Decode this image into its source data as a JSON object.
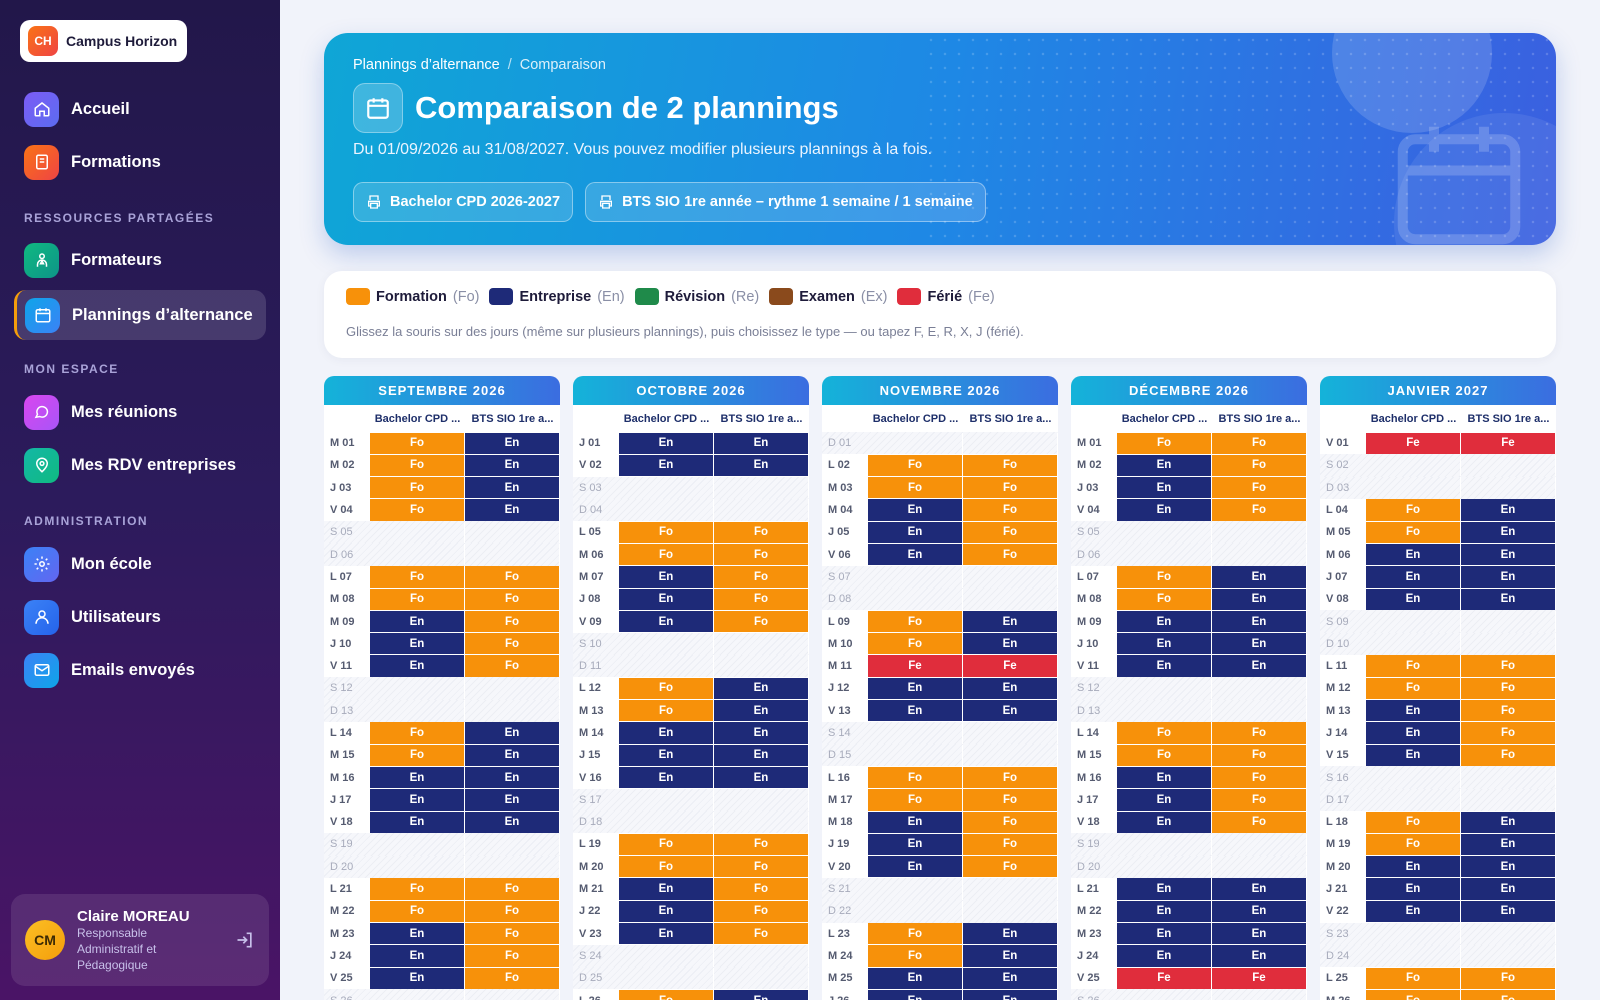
{
  "app": {
    "logo_initials": "CH",
    "logo_name": "Campus Horizon"
  },
  "nav": {
    "accueil": "Accueil",
    "formations": "Formations",
    "section_shared": "RESSOURCES PARTAGÉES",
    "formateurs": "Formateurs",
    "plannings": "Plannings d’alternance",
    "section_me": "MON ESPACE",
    "reunions": "Mes réunions",
    "rdv": "Mes RDV entreprises",
    "section_admin": "ADMINISTRATION",
    "ecole": "Mon école",
    "utilisateurs": "Utilisateurs",
    "emails": "Emails envoyés"
  },
  "user": {
    "initials": "CM",
    "name": "Claire MOREAU",
    "role": "Responsable Administratif et Pédagogique"
  },
  "hero": {
    "breadcrumb_root": "Plannings d’alternance",
    "breadcrumb_sep": "/",
    "breadcrumb_current": "Comparaison",
    "title": "Comparaison de 2 plannings",
    "subtitle": "Du 01/09/2026 au 31/08/2027. Vous pouvez modifier plusieurs plannings à la fois.",
    "chip1": "Bachelor CPD 2026-2027",
    "chip2": "BTS SIO 1re année – rythme 1 semaine / 1 semaine"
  },
  "legend": {
    "items": [
      {
        "name": "Formation",
        "code": "(Fo)",
        "color": "#f7910a"
      },
      {
        "name": "Entreprise",
        "code": "(En)",
        "color": "#1e2a78"
      },
      {
        "name": "Révision",
        "code": "(Re)",
        "color": "#1f8a4a"
      },
      {
        "name": "Examen",
        "code": "(Ex)",
        "color": "#8a4a1c"
      },
      {
        "name": "Férié",
        "code": "(Fe)",
        "color": "#e02d3c"
      }
    ],
    "hint": "Glissez la souris sur des jours (même sur plusieurs plannings), puis choisissez le type — ou tapez F, E, R, X, J (férié)."
  },
  "column_headers": [
    "Bachelor CPD ...",
    "BTS SIO 1re a..."
  ],
  "months": [
    {
      "title": "SEPTEMBRE 2026",
      "rows": [
        [
          "M 01",
          "Fo",
          "En"
        ],
        [
          "M 02",
          "Fo",
          "En"
        ],
        [
          "J 03",
          "Fo",
          "En"
        ],
        [
          "V 04",
          "Fo",
          "En"
        ],
        [
          "S 05",
          "",
          ""
        ],
        [
          "D 06",
          "",
          ""
        ],
        [
          "L 07",
          "Fo",
          "Fo"
        ],
        [
          "M 08",
          "Fo",
          "Fo"
        ],
        [
          "M 09",
          "En",
          "Fo"
        ],
        [
          "J 10",
          "En",
          "Fo"
        ],
        [
          "V 11",
          "En",
          "Fo"
        ],
        [
          "S 12",
          "",
          ""
        ],
        [
          "D 13",
          "",
          ""
        ],
        [
          "L 14",
          "Fo",
          "En"
        ],
        [
          "M 15",
          "Fo",
          "En"
        ],
        [
          "M 16",
          "En",
          "En"
        ],
        [
          "J 17",
          "En",
          "En"
        ],
        [
          "V 18",
          "En",
          "En"
        ],
        [
          "S 19",
          "",
          ""
        ],
        [
          "D 20",
          "",
          ""
        ],
        [
          "L 21",
          "Fo",
          "Fo"
        ],
        [
          "M 22",
          "Fo",
          "Fo"
        ],
        [
          "M 23",
          "En",
          "Fo"
        ],
        [
          "J 24",
          "En",
          "Fo"
        ],
        [
          "V 25",
          "En",
          "Fo"
        ],
        [
          "S 26",
          "",
          ""
        ]
      ]
    },
    {
      "title": "OCTOBRE 2026",
      "rows": [
        [
          "J 01",
          "En",
          "En"
        ],
        [
          "V 02",
          "En",
          "En"
        ],
        [
          "S 03",
          "",
          ""
        ],
        [
          "D 04",
          "",
          ""
        ],
        [
          "L 05",
          "Fo",
          "Fo"
        ],
        [
          "M 06",
          "Fo",
          "Fo"
        ],
        [
          "M 07",
          "En",
          "Fo"
        ],
        [
          "J 08",
          "En",
          "Fo"
        ],
        [
          "V 09",
          "En",
          "Fo"
        ],
        [
          "S 10",
          "",
          ""
        ],
        [
          "D 11",
          "",
          ""
        ],
        [
          "L 12",
          "Fo",
          "En"
        ],
        [
          "M 13",
          "Fo",
          "En"
        ],
        [
          "M 14",
          "En",
          "En"
        ],
        [
          "J 15",
          "En",
          "En"
        ],
        [
          "V 16",
          "En",
          "En"
        ],
        [
          "S 17",
          "",
          ""
        ],
        [
          "D 18",
          "",
          ""
        ],
        [
          "L 19",
          "Fo",
          "Fo"
        ],
        [
          "M 20",
          "Fo",
          "Fo"
        ],
        [
          "M 21",
          "En",
          "Fo"
        ],
        [
          "J 22",
          "En",
          "Fo"
        ],
        [
          "V 23",
          "En",
          "Fo"
        ],
        [
          "S 24",
          "",
          ""
        ],
        [
          "D 25",
          "",
          ""
        ],
        [
          "L 26",
          "Fo",
          "En"
        ]
      ]
    },
    {
      "title": "NOVEMBRE 2026",
      "rows": [
        [
          "D 01",
          "",
          ""
        ],
        [
          "L 02",
          "Fo",
          "Fo"
        ],
        [
          "M 03",
          "Fo",
          "Fo"
        ],
        [
          "M 04",
          "En",
          "Fo"
        ],
        [
          "J 05",
          "En",
          "Fo"
        ],
        [
          "V 06",
          "En",
          "Fo"
        ],
        [
          "S 07",
          "",
          ""
        ],
        [
          "D 08",
          "",
          ""
        ],
        [
          "L 09",
          "Fo",
          "En"
        ],
        [
          "M 10",
          "Fo",
          "En"
        ],
        [
          "M 11",
          "Fe",
          "Fe"
        ],
        [
          "J 12",
          "En",
          "En"
        ],
        [
          "V 13",
          "En",
          "En"
        ],
        [
          "S 14",
          "",
          ""
        ],
        [
          "D 15",
          "",
          ""
        ],
        [
          "L 16",
          "Fo",
          "Fo"
        ],
        [
          "M 17",
          "Fo",
          "Fo"
        ],
        [
          "M 18",
          "En",
          "Fo"
        ],
        [
          "J 19",
          "En",
          "Fo"
        ],
        [
          "V 20",
          "En",
          "Fo"
        ],
        [
          "S 21",
          "",
          ""
        ],
        [
          "D 22",
          "",
          ""
        ],
        [
          "L 23",
          "Fo",
          "En"
        ],
        [
          "M 24",
          "Fo",
          "En"
        ],
        [
          "M 25",
          "En",
          "En"
        ],
        [
          "J 26",
          "En",
          "En"
        ]
      ]
    },
    {
      "title": "DÉCEMBRE 2026",
      "rows": [
        [
          "M 01",
          "Fo",
          "Fo"
        ],
        [
          "M 02",
          "En",
          "Fo"
        ],
        [
          "J 03",
          "En",
          "Fo"
        ],
        [
          "V 04",
          "En",
          "Fo"
        ],
        [
          "S 05",
          "",
          ""
        ],
        [
          "D 06",
          "",
          ""
        ],
        [
          "L 07",
          "Fo",
          "En"
        ],
        [
          "M 08",
          "Fo",
          "En"
        ],
        [
          "M 09",
          "En",
          "En"
        ],
        [
          "J 10",
          "En",
          "En"
        ],
        [
          "V 11",
          "En",
          "En"
        ],
        [
          "S 12",
          "",
          ""
        ],
        [
          "D 13",
          "",
          ""
        ],
        [
          "L 14",
          "Fo",
          "Fo"
        ],
        [
          "M 15",
          "Fo",
          "Fo"
        ],
        [
          "M 16",
          "En",
          "Fo"
        ],
        [
          "J 17",
          "En",
          "Fo"
        ],
        [
          "V 18",
          "En",
          "Fo"
        ],
        [
          "S 19",
          "",
          ""
        ],
        [
          "D 20",
          "",
          ""
        ],
        [
          "L 21",
          "En",
          "En"
        ],
        [
          "M 22",
          "En",
          "En"
        ],
        [
          "M 23",
          "En",
          "En"
        ],
        [
          "J 24",
          "En",
          "En"
        ],
        [
          "V 25",
          "Fe",
          "Fe"
        ],
        [
          "S 26",
          "",
          ""
        ]
      ]
    },
    {
      "title": "JANVIER 2027",
      "rows": [
        [
          "V 01",
          "Fe",
          "Fe"
        ],
        [
          "S 02",
          "",
          ""
        ],
        [
          "D 03",
          "",
          ""
        ],
        [
          "L 04",
          "Fo",
          "En"
        ],
        [
          "M 05",
          "Fo",
          "En"
        ],
        [
          "M 06",
          "En",
          "En"
        ],
        [
          "J 07",
          "En",
          "En"
        ],
        [
          "V 08",
          "En",
          "En"
        ],
        [
          "S 09",
          "",
          ""
        ],
        [
          "D 10",
          "",
          ""
        ],
        [
          "L 11",
          "Fo",
          "Fo"
        ],
        [
          "M 12",
          "Fo",
          "Fo"
        ],
        [
          "M 13",
          "En",
          "Fo"
        ],
        [
          "J 14",
          "En",
          "Fo"
        ],
        [
          "V 15",
          "En",
          "Fo"
        ],
        [
          "S 16",
          "",
          ""
        ],
        [
          "D 17",
          "",
          ""
        ],
        [
          "L 18",
          "Fo",
          "En"
        ],
        [
          "M 19",
          "Fo",
          "En"
        ],
        [
          "M 20",
          "En",
          "En"
        ],
        [
          "J 21",
          "En",
          "En"
        ],
        [
          "V 22",
          "En",
          "En"
        ],
        [
          "S 23",
          "",
          ""
        ],
        [
          "D 24",
          "",
          ""
        ],
        [
          "L 25",
          "Fo",
          "Fo"
        ],
        [
          "M 26",
          "Fo",
          "Fo"
        ]
      ]
    }
  ]
}
